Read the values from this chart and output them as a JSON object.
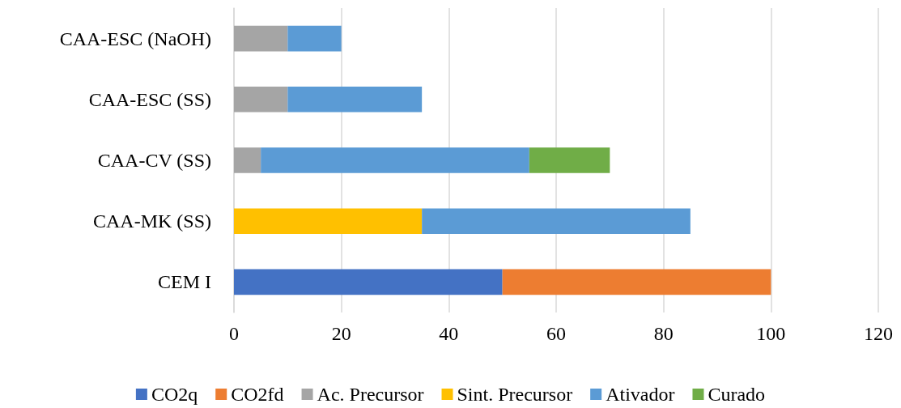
{
  "chart_data": {
    "type": "bar",
    "orientation": "horizontal",
    "stacked": true,
    "categories": [
      "CAA-ESC (NaOH)",
      "CAA-ESC (SS)",
      "CAA-CV (SS)",
      "CAA-MK (SS)",
      "CEM I"
    ],
    "series": [
      {
        "name": "CO2q",
        "color": "#4472c4",
        "values": [
          null,
          null,
          null,
          null,
          50
        ]
      },
      {
        "name": "CO2fd",
        "color": "#ed7d31",
        "values": [
          null,
          null,
          null,
          null,
          50
        ]
      },
      {
        "name": "Ac. Precursor",
        "color": "#a5a5a5",
        "values": [
          10,
          10,
          5,
          null,
          null
        ]
      },
      {
        "name": "Sint. Precursor",
        "color": "#ffc000",
        "values": [
          null,
          null,
          null,
          35,
          null
        ]
      },
      {
        "name": "Ativador",
        "color": "#5b9bd5",
        "values": [
          10,
          25,
          50,
          50,
          null
        ]
      },
      {
        "name": "Curado",
        "color": "#70ad47",
        "values": [
          null,
          null,
          15,
          null,
          null
        ]
      }
    ],
    "xlim": [
      0,
      120
    ],
    "xticks": [
      0,
      20,
      40,
      60,
      80,
      100,
      120
    ],
    "grid": "x",
    "legend": "bottom"
  }
}
